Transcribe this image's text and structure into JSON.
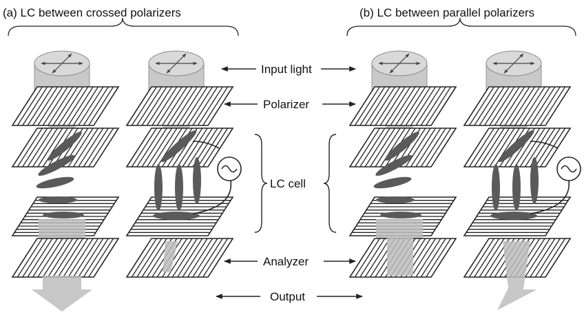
{
  "panels": {
    "a_title": "(a) LC between crossed polarizers",
    "b_title": "(b) LC between parallel polarizers"
  },
  "labels": {
    "input_light": "Input light",
    "polarizer": "Polarizer",
    "lc_cell": "LC cell",
    "analyzer": "Analyzer",
    "output": "Output"
  },
  "colors": {
    "plate_stroke": "#222222",
    "beam_fill": "#bdbdbd",
    "molecule_fill": "#5a5a5a",
    "cylinder_fill": "#c4c4c4"
  },
  "icons": {
    "voltage_source": "ac-source-icon",
    "arrow": "double-headed-arrow"
  }
}
